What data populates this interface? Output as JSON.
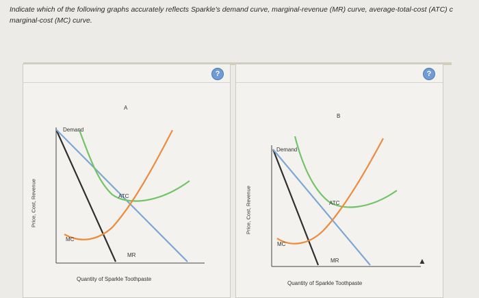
{
  "question": {
    "line1": "Indicate which of the following graphs accurately reflects Sparkle's demand curve, marginal-revenue (MR) curve, average-total-cost (ATC) c",
    "line2": "marginal-cost (MC) curve."
  },
  "help_label": "?",
  "graphs": [
    {
      "title": "A",
      "y_axis": "Price, Cost, Revenue",
      "x_axis": "Quantity of Sparkle Toothpaste",
      "curves": {
        "demand": "Demand",
        "atc": "ATC",
        "mc": "MC",
        "mr": "MR"
      }
    },
    {
      "title": "B",
      "y_axis": "Price, Cost, Revenue",
      "x_axis": "Quantity of Sparkle Toothpaste",
      "curves": {
        "demand": "Demand",
        "atc": "ATC",
        "mc": "MC",
        "mr": "MR"
      }
    }
  ],
  "colors": {
    "demand": "#2f2f2f",
    "mr": "#7ea6d4",
    "atc": "#72c466",
    "mc": "#f08a3c"
  }
}
